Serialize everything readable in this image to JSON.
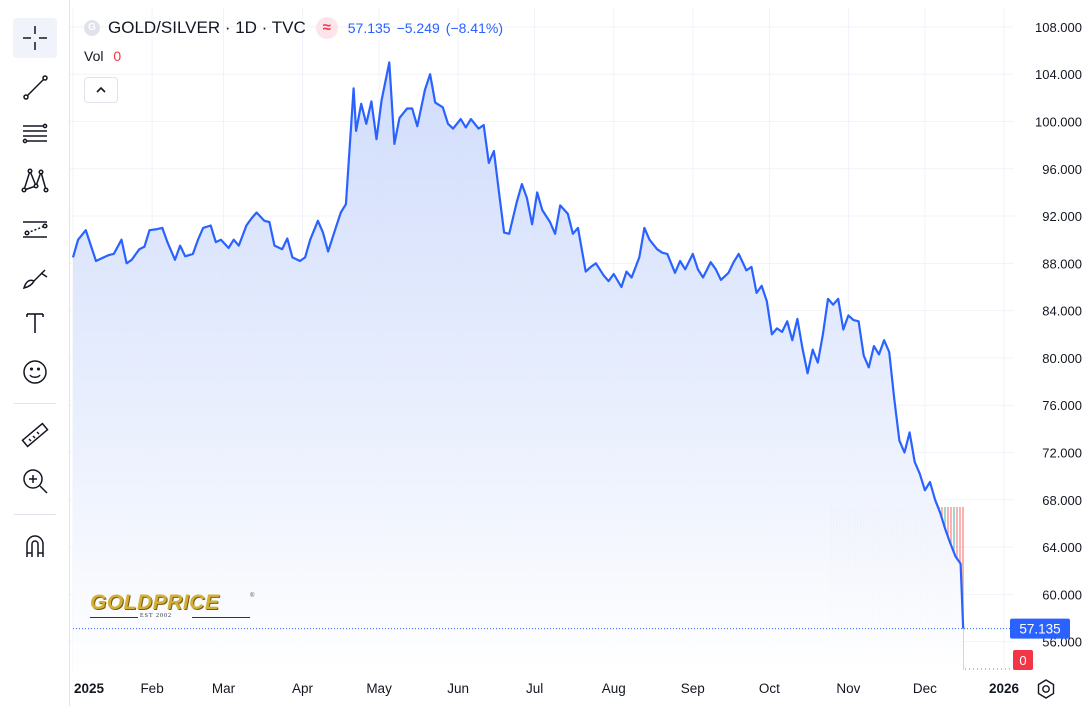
{
  "toolbar": {
    "tools": [
      {
        "name": "crosshair-tool",
        "icon": "crosshair-icon",
        "active": true
      },
      {
        "name": "trend-line-tool",
        "icon": "trend-line-icon"
      },
      {
        "name": "fib-retracement-tool",
        "icon": "fib-lines-icon"
      },
      {
        "name": "pattern-tool",
        "icon": "xabcd-pattern-icon"
      },
      {
        "name": "forecast-tool",
        "icon": "forecast-icon"
      },
      {
        "name": "brush-tool",
        "icon": "brush-icon"
      },
      {
        "name": "text-tool",
        "icon": "text-icon"
      },
      {
        "name": "emoji-tool",
        "icon": "smiley-icon"
      },
      {
        "name": "measure-tool",
        "icon": "ruler-icon"
      },
      {
        "name": "zoom-tool",
        "icon": "zoom-in-icon"
      },
      {
        "name": "magnet-tool",
        "icon": "magnet-icon"
      }
    ]
  },
  "legend": {
    "badge": "G",
    "symbol": "GOLD/SILVER · 1D · TVC",
    "last": "57.135",
    "change": "−5.249",
    "change_pct": "(−8.41%)",
    "vol_label": "Vol",
    "vol_value": "0"
  },
  "logo": {
    "text": "GOLDPRICE",
    "est": "EST 2002",
    "reg": "®"
  },
  "colors": {
    "line": "#2962ff",
    "area_top": "#c9d7fb",
    "area_bottom": "#ffffff",
    "up": "#26a69a",
    "down": "#ef5350",
    "price_label_bg": "#2962ff",
    "vol_label_bg": "#f23645"
  },
  "chart_data": {
    "type": "area",
    "title": "GOLD/SILVER · 1D · TVC",
    "ylim": [
      53.6,
      109.6
    ],
    "y_ticks": [
      "108.000",
      "104.000",
      "100.000",
      "96.000",
      "92.000",
      "88.000",
      "84.000",
      "80.000",
      "76.000",
      "72.000",
      "68.000",
      "64.000",
      "60.000",
      "56.000"
    ],
    "x_ticks": [
      "2025",
      "Feb",
      "Mar",
      "Apr",
      "May",
      "Jun",
      "Jul",
      "Aug",
      "Sep",
      "Oct",
      "Nov",
      "Dec",
      "2026"
    ],
    "x_tick_dates": [
      "2025-01-01",
      "2025-02-01",
      "2025-03-01",
      "2025-04-01",
      "2025-05-01",
      "2025-06-01",
      "2025-07-01",
      "2025-08-01",
      "2025-09-01",
      "2025-10-01",
      "2025-11-01",
      "2025-12-01",
      "2026-01-01"
    ],
    "last_price_label": "57.135",
    "last_volume_label": "0",
    "series": [
      {
        "type": "line",
        "points": [
          [
            "2025-01-01",
            88.5
          ],
          [
            "2025-01-03",
            90.0
          ],
          [
            "2025-01-06",
            90.8
          ],
          [
            "2025-01-08",
            89.5
          ],
          [
            "2025-01-10",
            88.2
          ],
          [
            "2025-01-13",
            88.5
          ],
          [
            "2025-01-15",
            88.7
          ],
          [
            "2025-01-17",
            88.8
          ],
          [
            "2025-01-20",
            90.0
          ],
          [
            "2025-01-22",
            88.0
          ],
          [
            "2025-01-24",
            88.3
          ],
          [
            "2025-01-27",
            89.2
          ],
          [
            "2025-01-29",
            89.4
          ],
          [
            "2025-01-31",
            90.8
          ],
          [
            "2025-02-03",
            90.9
          ],
          [
            "2025-02-05",
            91.0
          ],
          [
            "2025-02-07",
            89.8
          ],
          [
            "2025-02-10",
            88.3
          ],
          [
            "2025-02-12",
            89.5
          ],
          [
            "2025-02-14",
            88.6
          ],
          [
            "2025-02-17",
            88.8
          ],
          [
            "2025-02-19",
            90.0
          ],
          [
            "2025-02-21",
            91.0
          ],
          [
            "2025-02-24",
            91.2
          ],
          [
            "2025-02-26",
            89.8
          ],
          [
            "2025-02-28",
            90.0
          ],
          [
            "2025-03-03",
            89.3
          ],
          [
            "2025-03-05",
            90.0
          ],
          [
            "2025-03-07",
            89.5
          ],
          [
            "2025-03-10",
            91.2
          ],
          [
            "2025-03-12",
            91.8
          ],
          [
            "2025-03-14",
            92.3
          ],
          [
            "2025-03-17",
            91.6
          ],
          [
            "2025-03-19",
            91.5
          ],
          [
            "2025-03-21",
            89.5
          ],
          [
            "2025-03-24",
            89.2
          ],
          [
            "2025-03-26",
            90.1
          ],
          [
            "2025-03-28",
            88.5
          ],
          [
            "2025-03-31",
            88.2
          ],
          [
            "2025-04-02",
            88.5
          ],
          [
            "2025-04-04",
            90.0
          ],
          [
            "2025-04-07",
            91.6
          ],
          [
            "2025-04-09",
            90.6
          ],
          [
            "2025-04-11",
            89.0
          ],
          [
            "2025-04-14",
            91.0
          ],
          [
            "2025-04-16",
            92.3
          ],
          [
            "2025-04-18",
            93.0
          ],
          [
            "2025-04-21",
            102.8
          ],
          [
            "2025-04-22",
            99.2
          ],
          [
            "2025-04-24",
            101.5
          ],
          [
            "2025-04-26",
            99.8
          ],
          [
            "2025-04-28",
            101.7
          ],
          [
            "2025-04-30",
            98.5
          ],
          [
            "2025-05-02",
            101.8
          ],
          [
            "2025-05-05",
            105.0
          ],
          [
            "2025-05-07",
            98.1
          ],
          [
            "2025-05-09",
            100.3
          ],
          [
            "2025-05-12",
            101.1
          ],
          [
            "2025-05-14",
            101.1
          ],
          [
            "2025-05-16",
            99.6
          ],
          [
            "2025-05-19",
            102.7
          ],
          [
            "2025-05-21",
            104.0
          ],
          [
            "2025-05-23",
            101.6
          ],
          [
            "2025-05-26",
            101.2
          ],
          [
            "2025-05-28",
            99.8
          ],
          [
            "2025-05-30",
            99.4
          ],
          [
            "2025-06-02",
            100.2
          ],
          [
            "2025-06-04",
            99.5
          ],
          [
            "2025-06-06",
            100.2
          ],
          [
            "2025-06-09",
            99.4
          ],
          [
            "2025-06-11",
            99.7
          ],
          [
            "2025-06-13",
            96.5
          ],
          [
            "2025-06-15",
            97.5
          ],
          [
            "2025-06-17",
            94.0
          ],
          [
            "2025-06-19",
            90.6
          ],
          [
            "2025-06-21",
            90.5
          ],
          [
            "2025-06-24",
            93.2
          ],
          [
            "2025-06-26",
            94.7
          ],
          [
            "2025-06-28",
            93.5
          ],
          [
            "2025-06-30",
            91.3
          ],
          [
            "2025-07-02",
            94.0
          ],
          [
            "2025-07-04",
            92.5
          ],
          [
            "2025-07-07",
            91.5
          ],
          [
            "2025-07-09",
            90.5
          ],
          [
            "2025-07-11",
            92.9
          ],
          [
            "2025-07-14",
            92.2
          ],
          [
            "2025-07-16",
            90.5
          ],
          [
            "2025-07-18",
            91.0
          ],
          [
            "2025-07-21",
            87.3
          ],
          [
            "2025-07-23",
            87.7
          ],
          [
            "2025-07-25",
            88.0
          ],
          [
            "2025-07-28",
            87.0
          ],
          [
            "2025-07-30",
            86.5
          ],
          [
            "2025-08-01",
            87.1
          ],
          [
            "2025-08-04",
            86.0
          ],
          [
            "2025-08-06",
            87.3
          ],
          [
            "2025-08-08",
            86.8
          ],
          [
            "2025-08-11",
            88.5
          ],
          [
            "2025-08-13",
            91.0
          ],
          [
            "2025-08-15",
            90.0
          ],
          [
            "2025-08-18",
            89.2
          ],
          [
            "2025-08-20",
            88.9
          ],
          [
            "2025-08-22",
            88.8
          ],
          [
            "2025-08-25",
            87.2
          ],
          [
            "2025-08-27",
            88.2
          ],
          [
            "2025-08-29",
            87.5
          ],
          [
            "2025-09-01",
            88.8
          ],
          [
            "2025-09-03",
            87.5
          ],
          [
            "2025-09-05",
            86.8
          ],
          [
            "2025-09-08",
            88.1
          ],
          [
            "2025-09-10",
            87.5
          ],
          [
            "2025-09-12",
            86.6
          ],
          [
            "2025-09-15",
            87.2
          ],
          [
            "2025-09-17",
            88.1
          ],
          [
            "2025-09-19",
            88.8
          ],
          [
            "2025-09-22",
            87.4
          ],
          [
            "2025-09-24",
            87.7
          ],
          [
            "2025-09-26",
            85.5
          ],
          [
            "2025-09-28",
            86.1
          ],
          [
            "2025-09-30",
            84.8
          ],
          [
            "2025-10-02",
            82.0
          ],
          [
            "2025-10-04",
            82.5
          ],
          [
            "2025-10-06",
            82.2
          ],
          [
            "2025-10-08",
            83.1
          ],
          [
            "2025-10-10",
            81.5
          ],
          [
            "2025-10-12",
            83.3
          ],
          [
            "2025-10-14",
            80.8
          ],
          [
            "2025-10-16",
            78.7
          ],
          [
            "2025-10-18",
            80.7
          ],
          [
            "2025-10-20",
            79.6
          ],
          [
            "2025-10-22",
            82.0
          ],
          [
            "2025-10-24",
            85.0
          ],
          [
            "2025-10-26",
            84.5
          ],
          [
            "2025-10-28",
            85.0
          ],
          [
            "2025-10-30",
            82.4
          ],
          [
            "2025-11-01",
            83.6
          ],
          [
            "2025-11-03",
            83.2
          ],
          [
            "2025-11-05",
            83.1
          ],
          [
            "2025-11-07",
            80.2
          ],
          [
            "2025-11-09",
            79.2
          ],
          [
            "2025-11-11",
            81.0
          ],
          [
            "2025-11-13",
            80.3
          ],
          [
            "2025-11-15",
            81.5
          ],
          [
            "2025-11-17",
            80.5
          ],
          [
            "2025-11-19",
            76.5
          ],
          [
            "2025-11-21",
            73.0
          ],
          [
            "2025-11-23",
            72.0
          ],
          [
            "2025-11-25",
            73.7
          ],
          [
            "2025-11-27",
            71.2
          ],
          [
            "2025-11-29",
            70.2
          ],
          [
            "2025-12-01",
            68.8
          ],
          [
            "2025-12-03",
            69.5
          ],
          [
            "2025-12-05",
            68.0
          ],
          [
            "2025-12-07",
            66.9
          ],
          [
            "2025-12-09",
            65.5
          ],
          [
            "2025-12-11",
            64.3
          ],
          [
            "2025-12-13",
            63.2
          ],
          [
            "2025-12-15",
            62.6
          ],
          [
            "2025-12-16",
            57.1
          ]
        ]
      }
    ],
    "volume_bars": {
      "start": "2025-10-24",
      "end": "2025-12-16",
      "colors": [
        "up",
        "down",
        "up",
        "down",
        "up",
        "down",
        "down",
        "up",
        "down",
        "up",
        "down",
        "up",
        "down",
        "down",
        "up",
        "down",
        "up",
        "down",
        "up",
        "down",
        "down",
        "up",
        "down",
        "up",
        "down",
        "down",
        "up",
        "down",
        "down",
        "up",
        "down",
        "down",
        "up",
        "down",
        "down",
        "up",
        "down",
        "down",
        "down",
        "up",
        "down",
        "down",
        "up",
        "down",
        "down",
        "down"
      ]
    }
  }
}
